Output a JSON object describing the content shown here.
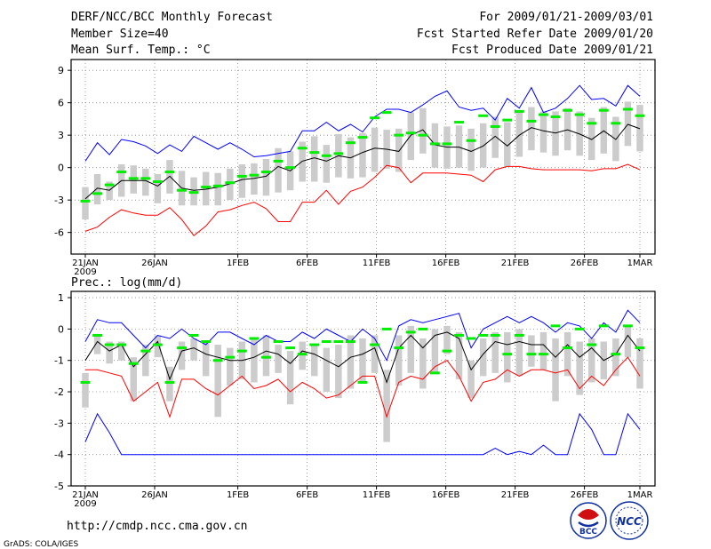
{
  "header": {
    "title": "DERF/NCC/BCC Monthly Forecast",
    "member_size": "Member Size=40",
    "for_range": "For 2009/01/21-2009/03/01",
    "fcst_started": "Fcst Started Refer Date 2009/01/20",
    "fcst_produced": "Fcst Produced Date 2009/01/21"
  },
  "footer": {
    "url": "http://cmdp.ncc.cma.gov.cn",
    "credit": "GrADS: COLA/IGES",
    "logo_bcc": "BCC",
    "logo_ncc": "NCC"
  },
  "colors": {
    "max": "#0000ff",
    "mean": "#000000",
    "min": "#ff0000",
    "member": "#00ee00",
    "box": "#cccccc"
  },
  "chart_data": [
    {
      "type": "box-line",
      "title": "Mean Surf. Temp.: °C",
      "x_tick_labels": [
        "21JAN",
        "26JAN",
        "1FEB",
        "6FEB",
        "11FEB",
        "16FEB",
        "21FEB",
        "26FEB",
        "1MAR"
      ],
      "x_tick_days": [
        0,
        5,
        11,
        16,
        21,
        26,
        31,
        36,
        40
      ],
      "x_year_label": "2009",
      "ylim": [
        -8,
        10
      ],
      "y_ticks": [
        -6,
        -3,
        0,
        3,
        6,
        9
      ],
      "grid": true,
      "series": [
        {
          "name": "max",
          "values": [
            0.6,
            2.3,
            1.2,
            2.6,
            2.4,
            2.0,
            1.3,
            2.1,
            1.5,
            2.9,
            2.3,
            1.7,
            2.3,
            1.7,
            1.0,
            1.1,
            1.3,
            1.5,
            3.4,
            3.4,
            4.2,
            3.4,
            4.0,
            3.3,
            4.7,
            5.4,
            5.4,
            5.1,
            5.8,
            6.6,
            7.1,
            5.6,
            5.3,
            5.5,
            4.4,
            6.4,
            5.5,
            7.4,
            5.1,
            5.5,
            6.4,
            7.6,
            6.3,
            6.4,
            5.7,
            7.6,
            6.6
          ]
        },
        {
          "name": "mean",
          "values": [
            -2.9,
            -1.9,
            -2.1,
            -1.2,
            -1.2,
            -1.2,
            -1.7,
            -0.8,
            -1.9,
            -2.1,
            -2.0,
            -1.8,
            -1.5,
            -1.1,
            -1.0,
            -0.8,
            0.1,
            -0.3,
            0.6,
            0.9,
            0.6,
            1.1,
            0.9,
            1.4,
            1.8,
            1.7,
            1.5,
            3.0,
            3.5,
            2.1,
            1.9,
            1.9,
            1.5,
            2.0,
            2.9,
            2.0,
            3.0,
            3.7,
            3.4,
            3.2,
            3.5,
            3.1,
            2.6,
            3.4,
            2.6,
            4.0,
            3.6
          ]
        },
        {
          "name": "min",
          "values": [
            -5.9,
            -5.5,
            -4.6,
            -3.9,
            -4.2,
            -4.4,
            -4.4,
            -3.7,
            -4.8,
            -6.3,
            -5.4,
            -4.1,
            -3.9,
            -3.5,
            -3.2,
            -3.8,
            -5.0,
            -5.0,
            -3.2,
            -3.2,
            -2.1,
            -3.4,
            -2.2,
            -1.8,
            -0.9,
            0.2,
            0.0,
            -1.4,
            -0.5,
            -0.5,
            -0.5,
            -0.6,
            -0.7,
            -1.3,
            -0.2,
            0.1,
            0.1,
            -0.1,
            -0.2,
            -0.2,
            -0.2,
            -0.2,
            -0.3,
            -0.1,
            -0.1,
            0.3,
            -0.2
          ]
        },
        {
          "name": "spread_top",
          "values": [
            -1.8,
            -0.6,
            -1.3,
            0.3,
            0.2,
            -0.1,
            -0.6,
            0.7,
            -0.3,
            -0.9,
            -0.4,
            -0.5,
            -0.1,
            0.3,
            0.4,
            0.8,
            1.8,
            1.5,
            2.4,
            2.9,
            2.1,
            3.1,
            2.8,
            3.2,
            3.7,
            3.5,
            3.6,
            5.1,
            5.5,
            4.1,
            3.8,
            3.9,
            3.6,
            4.1,
            4.7,
            4.2,
            5.2,
            5.6,
            5.2,
            5.2,
            5.5,
            5.2,
            4.6,
            5.6,
            4.7,
            6.1,
            5.8
          ]
        },
        {
          "name": "spread_bottom",
          "values": [
            -4.8,
            -3.4,
            -3.0,
            -2.7,
            -2.4,
            -2.6,
            -3.3,
            -2.4,
            -3.5,
            -3.5,
            -3.5,
            -3.5,
            -3.0,
            -2.8,
            -2.5,
            -2.6,
            -2.3,
            -2.1,
            -1.3,
            -1.3,
            -1.4,
            -0.9,
            -1.0,
            -0.9,
            -0.4,
            -0.1,
            -0.4,
            0.7,
            1.3,
            0.0,
            -0.1,
            0.0,
            -0.3,
            0.0,
            0.9,
            0.1,
            1.0,
            1.6,
            1.4,
            1.1,
            1.6,
            1.1,
            0.7,
            1.3,
            0.6,
            2.0,
            1.5
          ]
        },
        {
          "name": "member",
          "values": [
            -3.1,
            -2.4,
            -1.6,
            -0.4,
            -1.0,
            -1.0,
            -1.3,
            -0.4,
            -2.1,
            -2.3,
            -1.8,
            -1.7,
            -1.4,
            -0.8,
            -0.7,
            -0.4,
            0.6,
            0.0,
            1.8,
            1.4,
            1.1,
            1.3,
            2.3,
            2.8,
            4.6,
            5.1,
            3.0,
            3.2,
            3.0,
            2.2,
            2.2,
            4.2,
            2.5,
            4.8,
            3.8,
            4.4,
            5.2,
            4.3,
            4.9,
            4.7,
            5.3,
            4.9,
            4.1,
            5.3,
            4.1,
            5.4,
            4.8
          ]
        }
      ]
    },
    {
      "type": "box-line",
      "title": "Prec.: log(mm/d)",
      "x_tick_labels": [
        "21JAN",
        "26JAN",
        "1FEB",
        "6FEB",
        "11FEB",
        "16FEB",
        "21FEB",
        "26FEB",
        "1MAR"
      ],
      "x_tick_days": [
        0,
        5,
        11,
        16,
        21,
        26,
        31,
        36,
        40
      ],
      "x_year_label": "2009",
      "ylim": [
        -5,
        1.2
      ],
      "y_ticks": [
        -5,
        -4,
        -3,
        -2,
        -1,
        0,
        1
      ],
      "grid": true,
      "series": [
        {
          "name": "max",
          "values": [
            -0.4,
            0.3,
            0.2,
            0.2,
            -0.2,
            -0.6,
            -0.2,
            -0.3,
            0.0,
            -0.3,
            -0.5,
            -0.1,
            -0.1,
            -0.3,
            -0.5,
            -0.2,
            -0.4,
            -0.4,
            -0.1,
            -0.3,
            0.0,
            -0.2,
            -0.4,
            0.0,
            -0.3,
            -1.0,
            0.1,
            0.3,
            0.2,
            0.3,
            0.4,
            0.5,
            -0.6,
            0.0,
            0.2,
            0.4,
            0.2,
            0.4,
            0.2,
            -0.1,
            0.2,
            0.1,
            -0.3,
            0.2,
            -0.1,
            0.6,
            0.2
          ]
        },
        {
          "name": "mean",
          "values": [
            -1.0,
            -0.4,
            -0.7,
            -0.5,
            -1.2,
            -0.8,
            -0.4,
            -1.6,
            -0.7,
            -0.6,
            -0.8,
            -0.9,
            -1.0,
            -1.0,
            -0.9,
            -0.7,
            -0.8,
            -1.1,
            -0.7,
            -0.8,
            -1.0,
            -1.2,
            -0.9,
            -0.8,
            -0.6,
            -1.7,
            -0.6,
            -0.2,
            -0.6,
            -0.2,
            -0.1,
            -0.3,
            -1.3,
            -0.8,
            -0.4,
            -0.5,
            -0.4,
            -0.5,
            -0.5,
            -0.9,
            -0.5,
            -0.9,
            -0.6,
            -1.0,
            -0.8,
            -0.2,
            -0.7
          ]
        },
        {
          "name": "min",
          "values": [
            -1.3,
            -1.3,
            -1.4,
            -1.5,
            -2.3,
            -2.0,
            -1.7,
            -2.8,
            -1.6,
            -1.6,
            -1.9,
            -2.1,
            -1.8,
            -1.5,
            -1.9,
            -1.8,
            -1.6,
            -2.0,
            -1.7,
            -1.9,
            -2.2,
            -2.1,
            -1.8,
            -1.5,
            -1.5,
            -2.8,
            -1.7,
            -1.5,
            -1.6,
            -1.2,
            -1.0,
            -1.5,
            -2.3,
            -1.7,
            -1.6,
            -1.3,
            -1.5,
            -1.3,
            -1.3,
            -1.4,
            -1.3,
            -1.9,
            -1.5,
            -1.8,
            -1.3,
            -0.9,
            -1.5
          ]
        },
        {
          "name": "spread_top",
          "values": [
            -1.4,
            -0.2,
            -0.4,
            -0.4,
            -0.9,
            -0.5,
            -0.2,
            -1.2,
            -0.4,
            -0.3,
            -0.4,
            -0.5,
            -0.6,
            -0.4,
            -0.3,
            -0.2,
            -0.5,
            -0.7,
            -0.4,
            -0.5,
            -0.6,
            -0.5,
            -0.2,
            -0.3,
            -0.2,
            -1.3,
            -0.2,
            0.1,
            -0.3,
            0.0,
            0.1,
            -0.1,
            -1.0,
            -0.3,
            -0.1,
            -0.1,
            0.0,
            -0.2,
            -0.1,
            -0.3,
            -0.1,
            -0.4,
            -0.3,
            -0.4,
            -0.3,
            0.1,
            -0.3
          ]
        },
        {
          "name": "spread_bottom",
          "values": [
            -2.5,
            -0.8,
            -1.1,
            -1.0,
            -2.3,
            -1.5,
            -0.9,
            -2.3,
            -1.3,
            -1.0,
            -1.5,
            -2.8,
            -1.8,
            -1.6,
            -1.7,
            -1.5,
            -1.4,
            -2.4,
            -1.3,
            -1.5,
            -2.0,
            -2.2,
            -1.9,
            -1.7,
            -1.4,
            -3.6,
            -1.8,
            -1.4,
            -1.9,
            -1.4,
            -0.8,
            -1.6,
            -2.2,
            -1.5,
            -1.4,
            -1.7,
            -1.5,
            -1.2,
            -1.3,
            -2.3,
            -1.5,
            -2.1,
            -1.7,
            -1.6,
            -1.5,
            -0.9,
            -1.9
          ]
        },
        {
          "name": "member",
          "values": [
            -1.7,
            -0.2,
            -0.5,
            -0.5,
            -1.1,
            -0.7,
            -0.5,
            -1.7,
            -0.6,
            -0.2,
            -0.4,
            -1.0,
            -0.9,
            -0.7,
            -0.3,
            -0.9,
            -0.4,
            -0.6,
            -0.8,
            -0.5,
            -0.4,
            -0.4,
            -0.4,
            -1.7,
            -0.5,
            0.0,
            -0.6,
            -0.1,
            0.0,
            -1.4,
            -0.7,
            -0.2,
            -0.3,
            -0.2,
            -0.2,
            -0.8,
            -0.2,
            -0.8,
            -0.8,
            0.1,
            -0.6,
            0.0,
            -0.5,
            0.1,
            -0.8,
            0.1,
            -0.6
          ]
        },
        {
          "name": "lower_envelope",
          "values": [
            -3.6,
            -2.7,
            -3.3,
            -4.0,
            -4.0,
            -4.0,
            -4.0,
            -4.0,
            -4.0,
            -4.0,
            -4.0,
            -4.0,
            -4.0,
            -4.0,
            -4.0,
            -4.0,
            -4.0,
            -4.0,
            -4.0,
            -4.0,
            -4.0,
            -4.0,
            -4.0,
            -4.0,
            -4.0,
            -4.0,
            -4.0,
            -4.0,
            -4.0,
            -4.0,
            -4.0,
            -4.0,
            -4.0,
            -4.0,
            -3.8,
            -4.0,
            -3.9,
            -4.0,
            -3.7,
            -4.0,
            -4.0,
            -2.7,
            -3.2,
            -4.0,
            -4.0,
            -2.7,
            -3.2
          ]
        }
      ]
    }
  ]
}
